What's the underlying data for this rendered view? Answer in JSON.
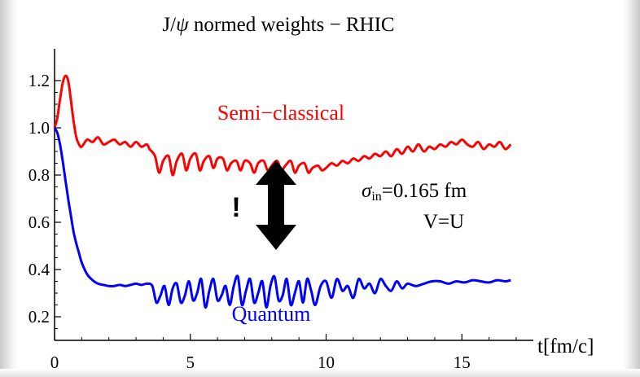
{
  "chart_data": {
    "type": "line",
    "title_prefix": "J/",
    "title_symbol": "ψ",
    "title_suffix": " normed weights − RHIC",
    "xlabel": "t[fm/c]",
    "ylabel": "",
    "xlim": [
      0,
      17.5
    ],
    "ylim": [
      0.1,
      1.25
    ],
    "x_ticks": [
      0,
      5,
      10,
      15
    ],
    "x_tick_labels": [
      "0",
      "5",
      "10",
      "15"
    ],
    "y_ticks": [
      0.2,
      0.4,
      0.6,
      0.8,
      1.0,
      1.2
    ],
    "y_tick_labels": [
      "0.2",
      "0.4",
      "0.6",
      "0.8",
      "1.0",
      "1.2"
    ],
    "grid": false,
    "series": [
      {
        "name": "Semi−classical",
        "color": "#ff0000",
        "x": [
          0,
          0.1,
          0.2,
          0.3,
          0.4,
          0.5,
          0.6,
          0.7,
          0.8,
          0.9,
          1.0,
          1.2,
          1.4,
          1.6,
          1.8,
          2.0,
          2.2,
          2.4,
          2.6,
          2.8,
          3.0,
          3.2,
          3.4,
          3.5,
          3.7,
          3.85,
          4.0,
          4.2,
          4.35,
          4.5,
          4.7,
          4.85,
          5.0,
          5.2,
          5.35,
          5.5,
          5.7,
          5.85,
          6.0,
          6.2,
          6.35,
          6.5,
          6.7,
          6.85,
          7.0,
          7.2,
          7.35,
          7.5,
          7.7,
          7.85,
          8.0,
          8.2,
          8.35,
          8.5,
          8.7,
          8.85,
          9.0,
          9.2,
          9.35,
          9.5,
          9.7,
          9.85,
          10.0,
          10.2,
          10.4,
          10.6,
          10.8,
          11.0,
          11.2,
          11.4,
          11.6,
          11.8,
          12.0,
          12.2,
          12.4,
          12.6,
          12.8,
          13.0,
          13.2,
          13.4,
          13.6,
          13.8,
          14.0,
          14.2,
          14.4,
          14.6,
          14.8,
          15.0,
          15.2,
          15.4,
          15.6,
          15.8,
          16.0,
          16.2,
          16.4,
          16.6,
          16.8
        ],
        "y": [
          1.0,
          1.04,
          1.12,
          1.19,
          1.22,
          1.2,
          1.12,
          1.03,
          0.96,
          0.93,
          0.92,
          0.95,
          0.94,
          0.96,
          0.93,
          0.94,
          0.95,
          0.93,
          0.94,
          0.92,
          0.94,
          0.92,
          0.93,
          0.91,
          0.88,
          0.81,
          0.86,
          0.88,
          0.8,
          0.86,
          0.89,
          0.82,
          0.87,
          0.89,
          0.82,
          0.86,
          0.88,
          0.83,
          0.87,
          0.87,
          0.82,
          0.85,
          0.86,
          0.82,
          0.86,
          0.85,
          0.81,
          0.85,
          0.86,
          0.82,
          0.84,
          0.86,
          0.82,
          0.84,
          0.86,
          0.81,
          0.84,
          0.85,
          0.81,
          0.83,
          0.84,
          0.82,
          0.83,
          0.85,
          0.84,
          0.86,
          0.85,
          0.87,
          0.86,
          0.88,
          0.87,
          0.89,
          0.88,
          0.9,
          0.88,
          0.91,
          0.89,
          0.92,
          0.9,
          0.93,
          0.9,
          0.92,
          0.91,
          0.93,
          0.92,
          0.94,
          0.93,
          0.95,
          0.93,
          0.92,
          0.94,
          0.91,
          0.93,
          0.92,
          0.94,
          0.91,
          0.93
        ]
      },
      {
        "name": "Quantum",
        "color": "#0000ff",
        "x": [
          0,
          0.1,
          0.2,
          0.3,
          0.4,
          0.5,
          0.6,
          0.7,
          0.8,
          0.9,
          1.0,
          1.2,
          1.4,
          1.6,
          1.8,
          2.0,
          2.2,
          2.4,
          2.6,
          2.8,
          3.0,
          3.2,
          3.4,
          3.6,
          3.75,
          3.9,
          4.05,
          4.2,
          4.35,
          4.5,
          4.65,
          4.8,
          4.95,
          5.1,
          5.25,
          5.4,
          5.55,
          5.7,
          5.85,
          6.0,
          6.15,
          6.3,
          6.45,
          6.6,
          6.75,
          6.9,
          7.05,
          7.2,
          7.35,
          7.5,
          7.65,
          7.8,
          7.95,
          8.1,
          8.25,
          8.4,
          8.55,
          8.7,
          8.85,
          9.0,
          9.15,
          9.3,
          9.45,
          9.6,
          9.8,
          10.0,
          10.2,
          10.4,
          10.6,
          10.8,
          11.0,
          11.2,
          11.4,
          11.6,
          11.8,
          12.0,
          12.2,
          12.4,
          12.6,
          12.8,
          13.0,
          13.3,
          13.6,
          13.9,
          14.2,
          14.5,
          14.8,
          15.1,
          15.4,
          15.7,
          16.0,
          16.3,
          16.6,
          16.8
        ],
        "y": [
          1.0,
          0.98,
          0.93,
          0.86,
          0.78,
          0.7,
          0.63,
          0.56,
          0.51,
          0.47,
          0.43,
          0.38,
          0.355,
          0.34,
          0.335,
          0.33,
          0.33,
          0.335,
          0.33,
          0.335,
          0.34,
          0.335,
          0.34,
          0.33,
          0.26,
          0.29,
          0.33,
          0.25,
          0.32,
          0.34,
          0.26,
          0.29,
          0.35,
          0.27,
          0.3,
          0.36,
          0.24,
          0.31,
          0.36,
          0.27,
          0.29,
          0.33,
          0.25,
          0.33,
          0.37,
          0.25,
          0.31,
          0.36,
          0.26,
          0.3,
          0.35,
          0.24,
          0.33,
          0.37,
          0.27,
          0.29,
          0.36,
          0.25,
          0.3,
          0.35,
          0.26,
          0.36,
          0.31,
          0.25,
          0.33,
          0.35,
          0.28,
          0.36,
          0.31,
          0.33,
          0.28,
          0.36,
          0.32,
          0.34,
          0.3,
          0.36,
          0.33,
          0.31,
          0.35,
          0.32,
          0.34,
          0.33,
          0.34,
          0.35,
          0.35,
          0.34,
          0.35,
          0.345,
          0.355,
          0.35,
          0.345,
          0.355,
          0.35,
          0.355
        ]
      }
    ],
    "annotations": {
      "semi_label": "Semi−classical",
      "quantum_label": "Quantum",
      "sigma_symbol": "σ",
      "sigma_sub": "in",
      "sigma_value": "=0.165 fm",
      "v_equals": "V=U",
      "exclamation": "!"
    }
  }
}
